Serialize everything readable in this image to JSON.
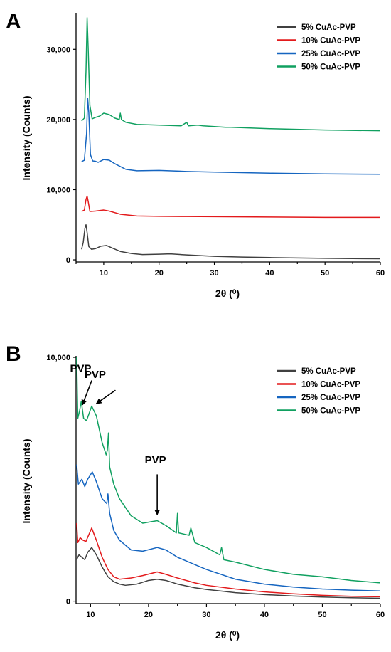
{
  "chart_data": [
    {
      "panel": "A",
      "type": "line",
      "title": "",
      "xlabel": "2θ (⁰)",
      "ylabel": "Intensity (Counts)",
      "xlim": [
        5,
        60
      ],
      "ylim": [
        -300,
        35000
      ],
      "x_ticks": [
        10,
        20,
        30,
        40,
        50,
        60
      ],
      "y_ticks": [
        0,
        10000,
        20000,
        30000
      ],
      "y_tick_labels": [
        "0",
        "10,000",
        "20,000",
        "30,000"
      ],
      "legend_position": "top-right",
      "series": [
        {
          "name": "5%    CuAc-PVP",
          "color": "#404040",
          "points": [
            [
              6,
              1500
            ],
            [
              6.3,
              2500
            ],
            [
              6.6,
              4500
            ],
            [
              6.8,
              5000
            ],
            [
              7.0,
              3900
            ],
            [
              7.3,
              1900
            ],
            [
              7.8,
              1500
            ],
            [
              8.5,
              1600
            ],
            [
              9.5,
              1950
            ],
            [
              10.5,
              2050
            ],
            [
              11.5,
              1700
            ],
            [
              13,
              1200
            ],
            [
              15,
              900
            ],
            [
              17,
              750
            ],
            [
              20,
              800
            ],
            [
              22,
              850
            ],
            [
              25,
              700
            ],
            [
              30,
              500
            ],
            [
              35,
              400
            ],
            [
              40,
              330
            ],
            [
              45,
              270
            ],
            [
              50,
              220
            ],
            [
              55,
              180
            ],
            [
              60,
              150
            ]
          ]
        },
        {
          "name": "10%  CuAc-PVP",
          "color": "#e31a1c",
          "points": [
            [
              6,
              6900
            ],
            [
              6.5,
              7100
            ],
            [
              6.8,
              8600
            ],
            [
              7.0,
              9100
            ],
            [
              7.2,
              8300
            ],
            [
              7.5,
              6900
            ],
            [
              8.5,
              6950
            ],
            [
              10,
              7100
            ],
            [
              11,
              6950
            ],
            [
              13,
              6500
            ],
            [
              16,
              6250
            ],
            [
              20,
              6200
            ],
            [
              25,
              6180
            ],
            [
              30,
              6150
            ],
            [
              40,
              6100
            ],
            [
              50,
              6050
            ],
            [
              60,
              6050
            ]
          ]
        },
        {
          "name": "25%  CuAc-PVP",
          "color": "#1565c0",
          "points": [
            [
              6,
              14000
            ],
            [
              6.5,
              14200
            ],
            [
              6.9,
              18000
            ],
            [
              7.1,
              23000
            ],
            [
              7.3,
              21000
            ],
            [
              7.6,
              15000
            ],
            [
              8,
              14100
            ],
            [
              8.5,
              14050
            ],
            [
              9,
              13900
            ],
            [
              10,
              14300
            ],
            [
              11,
              14200
            ],
            [
              12,
              13700
            ],
            [
              14,
              12900
            ],
            [
              16,
              12700
            ],
            [
              20,
              12750
            ],
            [
              25,
              12600
            ],
            [
              30,
              12500
            ],
            [
              40,
              12350
            ],
            [
              50,
              12250
            ],
            [
              60,
              12200
            ]
          ]
        },
        {
          "name": "50%  CuAc-PVP",
          "color": "#10a060",
          "points": [
            [
              6,
              19800
            ],
            [
              6.5,
              20200
            ],
            [
              6.8,
              27000
            ],
            [
              7.0,
              34500
            ],
            [
              7.2,
              30000
            ],
            [
              7.5,
              22000
            ],
            [
              7.9,
              20100
            ],
            [
              8.5,
              20300
            ],
            [
              9.3,
              20500
            ],
            [
              10,
              20900
            ],
            [
              11,
              20700
            ],
            [
              12,
              20200
            ],
            [
              12.8,
              20000
            ],
            [
              13.0,
              20900
            ],
            [
              13.2,
              20000
            ],
            [
              14,
              19600
            ],
            [
              16,
              19300
            ],
            [
              20,
              19200
            ],
            [
              24,
              19100
            ],
            [
              25,
              19600
            ],
            [
              25.3,
              19100
            ],
            [
              27,
              19200
            ],
            [
              28,
              19100
            ],
            [
              32,
              18900
            ],
            [
              33,
              18900
            ],
            [
              40,
              18700
            ],
            [
              50,
              18500
            ],
            [
              60,
              18400
            ]
          ]
        }
      ]
    },
    {
      "panel": "B",
      "type": "line",
      "title": "",
      "xlabel": "2θ (⁰)",
      "ylabel": "Intensity (Counts)",
      "xlim": [
        7.5,
        60
      ],
      "ylim": [
        -100,
        10000
      ],
      "x_ticks": [
        10,
        20,
        30,
        40,
        50,
        60
      ],
      "y_ticks": [
        0,
        10000
      ],
      "y_tick_labels": [
        "0",
        "10,000"
      ],
      "legend_position": "top-right",
      "annotations": [
        {
          "text": "PVP",
          "x": 8.3,
          "y": 7800
        },
        {
          "text": "PVP",
          "x": 10.2,
          "y": 8000
        },
        {
          "text": "PVP",
          "x": 21.5,
          "y": 3600
        }
      ],
      "series": [
        {
          "name": "5%    CuAc-PVP",
          "color": "#404040",
          "points": [
            [
              7.6,
              1700
            ],
            [
              8,
              1900
            ],
            [
              8.5,
              1800
            ],
            [
              9,
              1700
            ],
            [
              9.5,
              2000
            ],
            [
              10.2,
              2200
            ],
            [
              11,
              1900
            ],
            [
              12,
              1400
            ],
            [
              13,
              1000
            ],
            [
              14,
              800
            ],
            [
              15,
              700
            ],
            [
              16,
              650
            ],
            [
              18,
              700
            ],
            [
              20,
              850
            ],
            [
              21.5,
              900
            ],
            [
              23,
              850
            ],
            [
              25,
              700
            ],
            [
              28,
              550
            ],
            [
              30,
              480
            ],
            [
              35,
              350
            ],
            [
              40,
              270
            ],
            [
              45,
              210
            ],
            [
              50,
              170
            ],
            [
              55,
              140
            ],
            [
              60,
              120
            ]
          ]
        },
        {
          "name": "10%  CuAc-PVP",
          "color": "#e31a1c",
          "points": [
            [
              7.6,
              3200
            ],
            [
              7.8,
              2400
            ],
            [
              8.2,
              2600
            ],
            [
              8.7,
              2500
            ],
            [
              9.2,
              2450
            ],
            [
              10.2,
              3000
            ],
            [
              11,
              2500
            ],
            [
              12,
              1800
            ],
            [
              13,
              1300
            ],
            [
              14,
              1000
            ],
            [
              15,
              900
            ],
            [
              17,
              950
            ],
            [
              19,
              1050
            ],
            [
              21.5,
              1200
            ],
            [
              23,
              1100
            ],
            [
              25,
              950
            ],
            [
              28,
              750
            ],
            [
              30,
              650
            ],
            [
              35,
              500
            ],
            [
              40,
              380
            ],
            [
              45,
              300
            ],
            [
              50,
              240
            ],
            [
              55,
              200
            ],
            [
              60,
              180
            ]
          ]
        },
        {
          "name": "25%  CuAc-PVP",
          "color": "#1565c0",
          "points": [
            [
              7.6,
              5600
            ],
            [
              7.9,
              4800
            ],
            [
              8.5,
              5000
            ],
            [
              9.0,
              4700
            ],
            [
              9.5,
              5000
            ],
            [
              10.3,
              5300
            ],
            [
              11,
              4900
            ],
            [
              12,
              4200
            ],
            [
              12.8,
              4000
            ],
            [
              13.0,
              4400
            ],
            [
              13.3,
              3600
            ],
            [
              14,
              2900
            ],
            [
              15,
              2500
            ],
            [
              17,
              2100
            ],
            [
              19,
              2050
            ],
            [
              21.5,
              2200
            ],
            [
              23,
              2100
            ],
            [
              25,
              1800
            ],
            [
              27,
              1600
            ],
            [
              30,
              1300
            ],
            [
              35,
              900
            ],
            [
              40,
              700
            ],
            [
              45,
              580
            ],
            [
              50,
              500
            ],
            [
              55,
              450
            ],
            [
              60,
              420
            ]
          ]
        },
        {
          "name": "50%  CuAc-PVP",
          "color": "#10a060",
          "points": [
            [
              7.6,
              10000
            ],
            [
              7.8,
              7500
            ],
            [
              8.1,
              7800
            ],
            [
              8.4,
              8200
            ],
            [
              8.8,
              7500
            ],
            [
              9.3,
              7400
            ],
            [
              10.2,
              8000
            ],
            [
              11,
              7600
            ],
            [
              12,
              6500
            ],
            [
              12.7,
              6000
            ],
            [
              12.9,
              6200
            ],
            [
              13.1,
              6900
            ],
            [
              13.3,
              5500
            ],
            [
              14,
              4800
            ],
            [
              15,
              4200
            ],
            [
              17,
              3500
            ],
            [
              19,
              3200
            ],
            [
              21.5,
              3300
            ],
            [
              23,
              3100
            ],
            [
              24.8,
              2800
            ],
            [
              25.0,
              3600
            ],
            [
              25.2,
              2800
            ],
            [
              27,
              2700
            ],
            [
              27.3,
              3000
            ],
            [
              28,
              2400
            ],
            [
              30,
              2200
            ],
            [
              32.3,
              1900
            ],
            [
              32.6,
              2200
            ],
            [
              33,
              1700
            ],
            [
              35,
              1600
            ],
            [
              40,
              1300
            ],
            [
              45,
              1100
            ],
            [
              50,
              1000
            ],
            [
              55,
              850
            ],
            [
              60,
              750
            ]
          ]
        }
      ]
    }
  ],
  "figure": {
    "panel_a_letter": "A",
    "panel_b_letter": "B",
    "annotation_label": "PVP",
    "legend_labels": [
      "5%    CuAc-PVP",
      "10%  CuAc-PVP",
      "25%  CuAc-PVP",
      "50%  CuAc-PVP"
    ]
  }
}
